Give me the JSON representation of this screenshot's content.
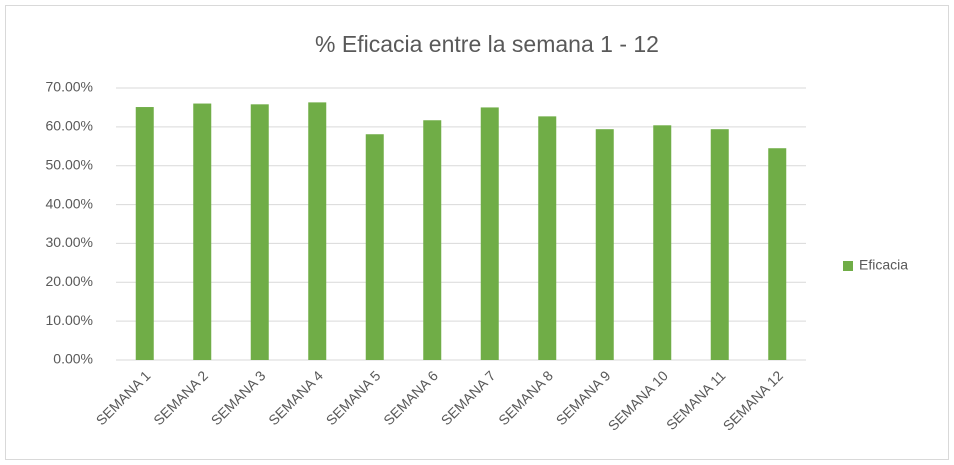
{
  "chart_data": {
    "type": "bar",
    "title": "% Eficacia entre la semana 1 - 12",
    "categories": [
      "SEMANA 1",
      "SEMANA 2",
      "SEMANA 3",
      "SEMANA 4",
      "SEMANA 5",
      "SEMANA 6",
      "SEMANA 7",
      "SEMANA 8",
      "SEMANA 9",
      "SEMANA 10",
      "SEMANA 11",
      "SEMANA 12"
    ],
    "series": [
      {
        "name": "Eficacia",
        "color": "#70ad47",
        "values": [
          65.1,
          66.0,
          65.8,
          66.3,
          58.1,
          61.7,
          65.0,
          62.7,
          59.4,
          60.4,
          59.4,
          54.5
        ]
      }
    ],
    "ylim": [
      0,
      70
    ],
    "yticks": [
      {
        "value": 0,
        "label": "0.00%"
      },
      {
        "value": 10,
        "label": "10.00%"
      },
      {
        "value": 20,
        "label": "20.00%"
      },
      {
        "value": 30,
        "label": "30.00%"
      },
      {
        "value": 40,
        "label": "40.00%"
      },
      {
        "value": 50,
        "label": "50.00%"
      },
      {
        "value": 60,
        "label": "60.00%"
      },
      {
        "value": 70,
        "label": "70.00%"
      }
    ],
    "grid": true,
    "legend": "right"
  }
}
